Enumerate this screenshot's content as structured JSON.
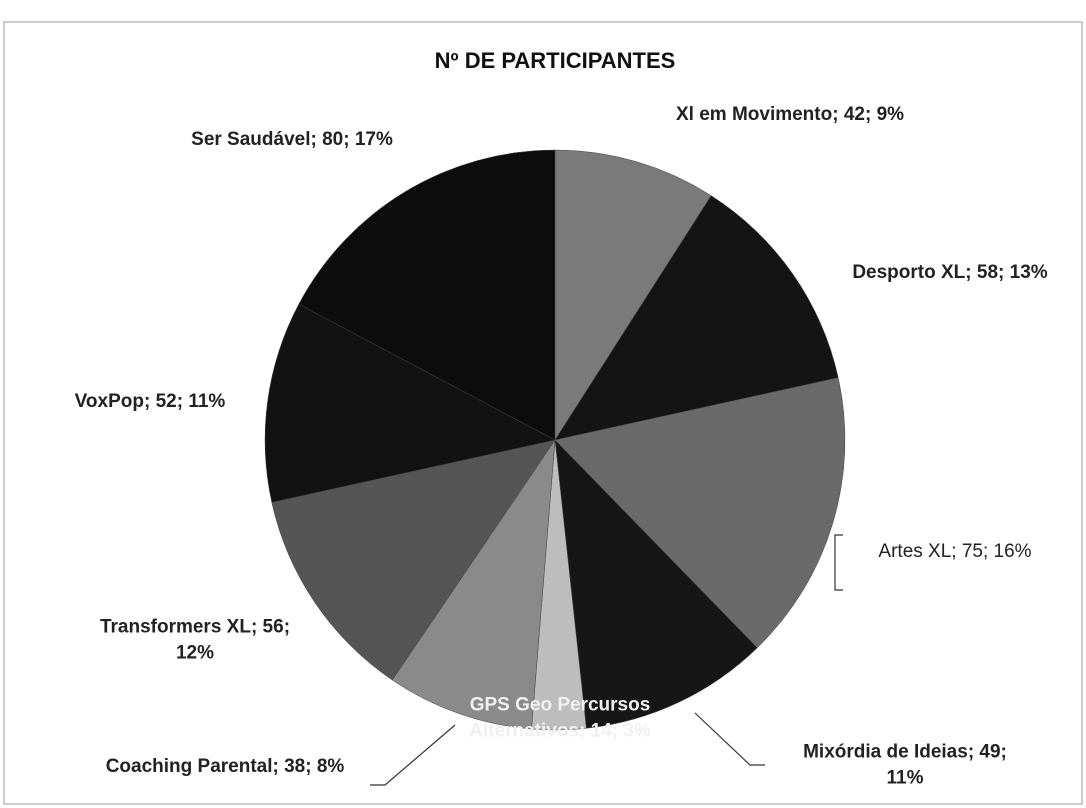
{
  "chart_data": {
    "type": "pie",
    "title": "Nº DE PARTICIPANTES",
    "categories": [
      "Xl em Movimento",
      "Desporto XL",
      "Artes XL",
      "Mixórdia de Ideias",
      "GPS Geo Percursos Alternativos",
      "Coaching Parental",
      "Transformers XL",
      "VoxPop",
      "Ser Saudável"
    ],
    "values": [
      42,
      58,
      75,
      49,
      14,
      38,
      56,
      52,
      80
    ],
    "value_labels": [
      "Xl em Movimento; 42; 9%",
      "Desporto XL; 58; 13%",
      "Artes XL; 75; 16%",
      "Mixórdia de Ideias; 49; 11%",
      "GPS Geo Percursos Alternativos; 14; 3%",
      "Coaching Parental; 38; 8%",
      "Transformers XL; 56; 12%",
      "VoxPop; 52; 11%",
      "Ser Saudável; 80; 17%"
    ],
    "colors": [
      "#7a7a7a",
      "#141414",
      "#6a6a6a",
      "#161616",
      "#bdbdbd",
      "#8a8a8a",
      "#555555",
      "#121212",
      "#0c0c0c"
    ]
  }
}
